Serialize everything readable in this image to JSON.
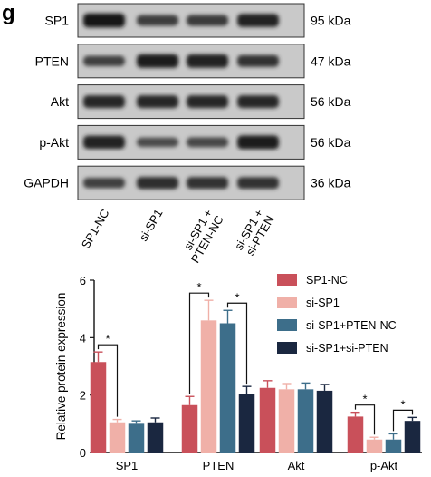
{
  "panel_letter": "g",
  "blot": {
    "lanes": [
      "SP1-NC",
      "si-SP1",
      "si-SP1 +\nPTEN-NC",
      "si-SP1 +\nsi-PTEN"
    ],
    "rows": [
      {
        "label": "SP1",
        "kda": "95 kDa",
        "intensities": [
          0.95,
          0.6,
          0.62,
          0.85
        ]
      },
      {
        "label": "PTEN",
        "kda": "47 kDa",
        "intensities": [
          0.55,
          0.9,
          0.88,
          0.7
        ]
      },
      {
        "label": "Akt",
        "kda": "56 kDa",
        "intensities": [
          0.8,
          0.8,
          0.8,
          0.8
        ]
      },
      {
        "label": "p-Akt",
        "kda": "56 kDa",
        "intensities": [
          0.85,
          0.45,
          0.5,
          0.9
        ]
      },
      {
        "label": "GAPDH",
        "kda": "36 kDa",
        "intensities": [
          0.55,
          0.75,
          0.72,
          0.7
        ]
      }
    ]
  },
  "chart_data": {
    "type": "bar",
    "ylabel": "Relative protein expression",
    "xlabel": "",
    "ylim": [
      0,
      6
    ],
    "yticks": [
      0,
      2,
      4,
      6
    ],
    "categories": [
      "SP1",
      "PTEN",
      "Akt",
      "p-Akt"
    ],
    "series": [
      {
        "name": "SP1-NC",
        "color": "#c9505a",
        "values": [
          3.15,
          1.65,
          2.25,
          1.25
        ],
        "errors": [
          0.35,
          0.3,
          0.25,
          0.15
        ]
      },
      {
        "name": "si-SP1",
        "color": "#f0b0a8",
        "values": [
          1.05,
          4.6,
          2.2,
          0.45
        ],
        "errors": [
          0.1,
          0.7,
          0.2,
          0.08
        ]
      },
      {
        "name": "si-SP1+PTEN-NC",
        "color": "#3d6e8a",
        "values": [
          1.0,
          4.5,
          2.2,
          0.45
        ],
        "errors": [
          0.1,
          0.45,
          0.22,
          0.2
        ]
      },
      {
        "name": "si-SP1+si-PTEN",
        "color": "#1a2740",
        "values": [
          1.05,
          2.05,
          2.15,
          1.1
        ],
        "errors": [
          0.15,
          0.25,
          0.22,
          0.12
        ]
      }
    ],
    "significance": [
      {
        "category": 0,
        "from": 0,
        "to": 1,
        "label": "*"
      },
      {
        "category": 1,
        "from": 0,
        "to": 1,
        "label": "*"
      },
      {
        "category": 1,
        "from": 2,
        "to": 3,
        "label": "*"
      },
      {
        "category": 3,
        "from": 0,
        "to": 1,
        "label": "*"
      },
      {
        "category": 3,
        "from": 2,
        "to": 3,
        "label": "*"
      }
    ],
    "legend": "top-right"
  }
}
